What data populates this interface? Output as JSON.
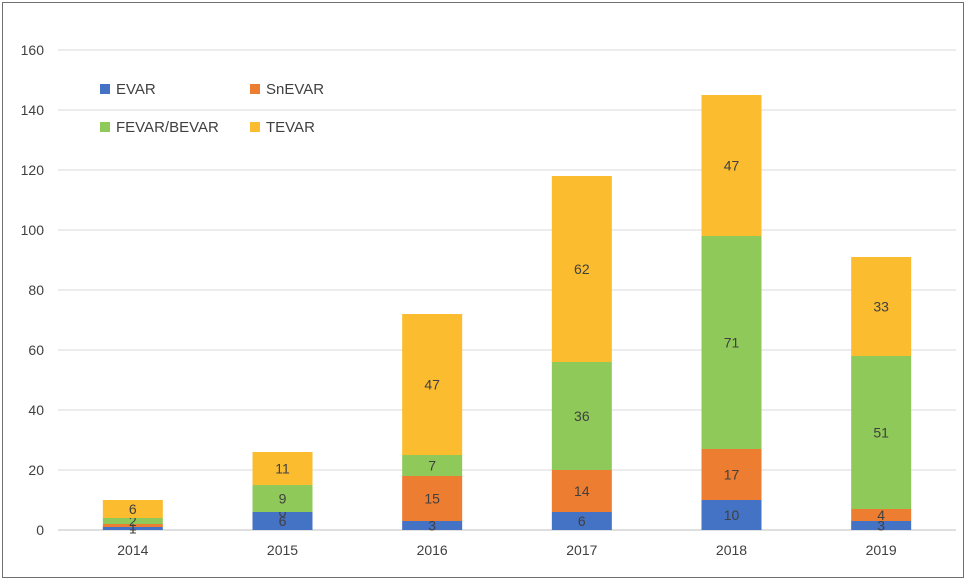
{
  "chart_data": {
    "type": "bar",
    "stacked": true,
    "title": "",
    "xlabel": "",
    "ylabel": "",
    "ylim": [
      0,
      160
    ],
    "yticks": [
      0,
      20,
      40,
      60,
      80,
      100,
      120,
      140,
      160
    ],
    "grid": true,
    "legend_position": "top-left",
    "categories": [
      "2014",
      "2015",
      "2016",
      "2017",
      "2018",
      "2019"
    ],
    "series": [
      {
        "name": "EVAR",
        "color": "#4472c4",
        "values": [
          1,
          6,
          3,
          6,
          10,
          3
        ]
      },
      {
        "name": "SnEVAR",
        "color": "#ed7d31",
        "values": [
          1,
          0,
          15,
          14,
          17,
          4
        ]
      },
      {
        "name": "FEVAR/BEVAR",
        "color": "#8fc95a",
        "values": [
          2,
          9,
          7,
          36,
          71,
          51
        ]
      },
      {
        "name": "TEVAR",
        "color": "#fbbd2f",
        "values": [
          6,
          11,
          47,
          62,
          47,
          33
        ]
      }
    ],
    "legend_order": [
      "EVAR",
      "SnEVAR",
      "FEVAR/BEVAR",
      "TEVAR"
    ]
  }
}
